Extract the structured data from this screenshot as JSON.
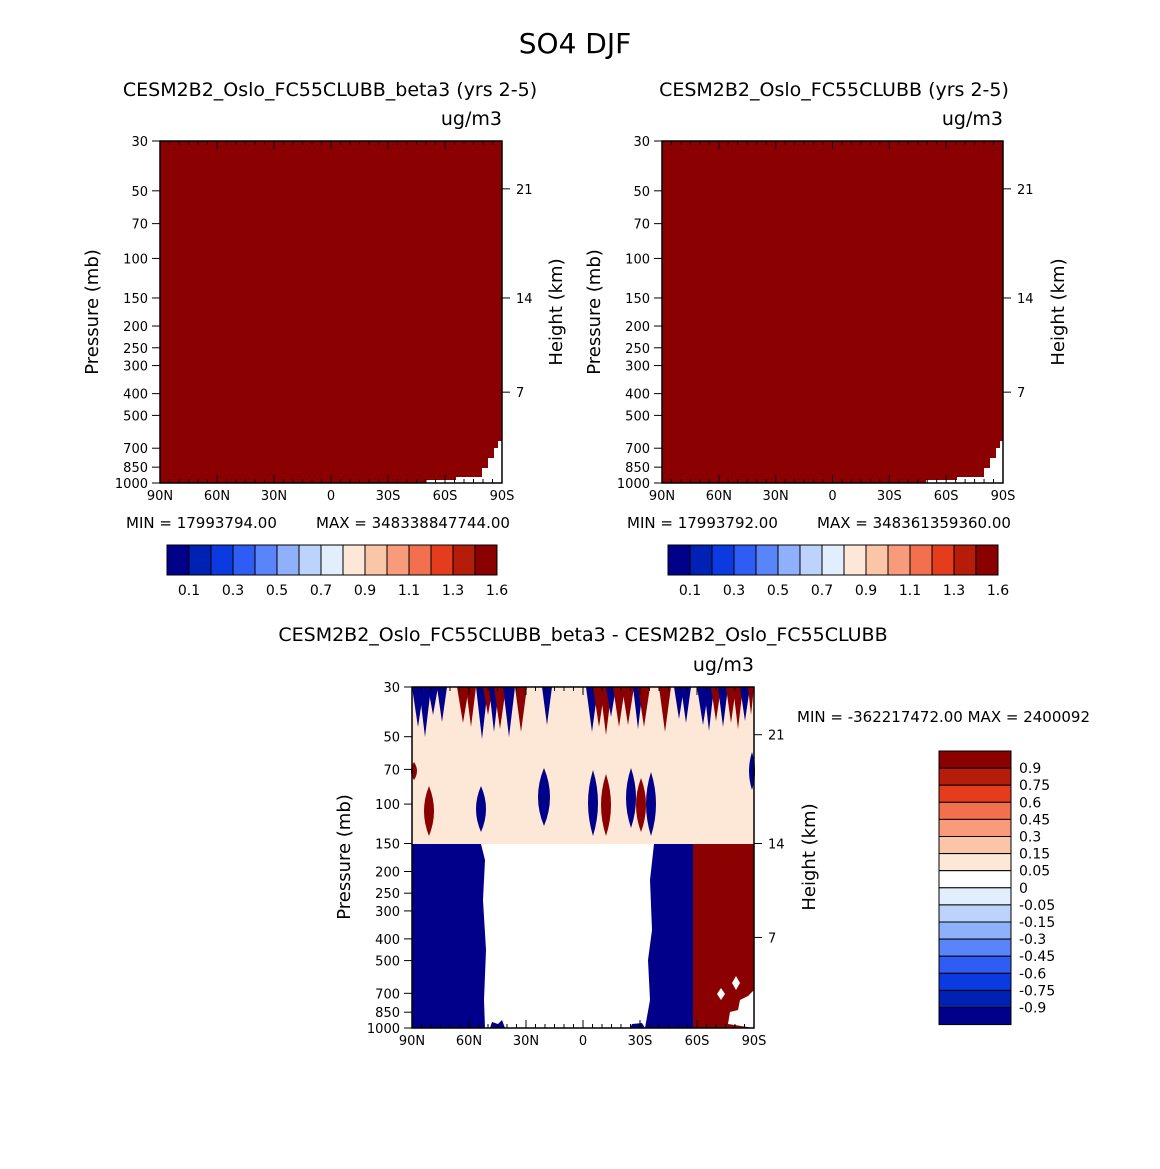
{
  "title": "SO4 DJF",
  "units_label": "ug/m3",
  "left_axis_label": "Pressure (mb)",
  "right_axis_label": "Height (km)",
  "chart_data": [
    {
      "type": "heatmap",
      "title": "CESM2B2_Oslo_FC55CLUBB_beta3 (yrs 2-5)",
      "units": "ug/m3",
      "xlabel": "",
      "ylabel": "Pressure (mb)",
      "ylabel_right": "Height (km)",
      "x_ticks": [
        "90N",
        "60N",
        "30N",
        "0",
        "30S",
        "60S",
        "90S"
      ],
      "y_ticks": [
        "30",
        "50",
        "70",
        "100",
        "150",
        "200",
        "250",
        "300",
        "400",
        "500",
        "700",
        "850",
        "1000"
      ],
      "y_ticks_right": [
        "21",
        "14",
        "7"
      ],
      "min_label": "MIN = 17993794.00",
      "max_label": "MAX = 348338847744.00",
      "fill": "#8b0000",
      "colorbar_labels": [
        "0.1",
        "0.3",
        "0.5",
        "0.7",
        "0.9",
        "1.1",
        "1.3",
        "1.6"
      ],
      "colorbar_colors": [
        "#00008b",
        "#0022b4",
        "#0a3ae0",
        "#2e5cf5",
        "#5a85fa",
        "#8fb0fb",
        "#bcd3fb",
        "#e2eefc",
        "#fde7d6",
        "#fbc5a8",
        "#f79b7a",
        "#f2704e",
        "#e63c1e",
        "#b51c0a",
        "#8b0000"
      ]
    },
    {
      "type": "heatmap",
      "title": "CESM2B2_Oslo_FC55CLUBB (yrs 2-5)",
      "units": "ug/m3",
      "xlabel": "",
      "ylabel": "Pressure (mb)",
      "ylabel_right": "Height (km)",
      "x_ticks": [
        "90N",
        "60N",
        "30N",
        "0",
        "30S",
        "60S",
        "90S"
      ],
      "y_ticks": [
        "30",
        "50",
        "70",
        "100",
        "150",
        "200",
        "250",
        "300",
        "400",
        "500",
        "700",
        "850",
        "1000"
      ],
      "y_ticks_right": [
        "21",
        "14",
        "7"
      ],
      "min_label": "MIN = 17993792.00",
      "max_label": "MAX = 348361359360.00",
      "fill": "#8b0000",
      "colorbar_labels": [
        "0.1",
        "0.3",
        "0.5",
        "0.7",
        "0.9",
        "1.1",
        "1.3",
        "1.6"
      ],
      "colorbar_colors": [
        "#00008b",
        "#0022b4",
        "#0a3ae0",
        "#2e5cf5",
        "#5a85fa",
        "#8fb0fb",
        "#bcd3fb",
        "#e2eefc",
        "#fde7d6",
        "#fbc5a8",
        "#f79b7a",
        "#f2704e",
        "#e63c1e",
        "#b51c0a",
        "#8b0000"
      ]
    },
    {
      "type": "heatmap",
      "title": "CESM2B2_Oslo_FC55CLUBB_beta3 - CESM2B2_Oslo_FC55CLUBB",
      "units": "ug/m3",
      "xlabel": "",
      "ylabel": "Pressure (mb)",
      "ylabel_right": "Height (km)",
      "x_ticks": [
        "90N",
        "60N",
        "30N",
        "0",
        "30S",
        "60S",
        "90S"
      ],
      "y_ticks": [
        "30",
        "50",
        "70",
        "100",
        "150",
        "200",
        "250",
        "300",
        "400",
        "500",
        "700",
        "850",
        "1000"
      ],
      "y_ticks_right": [
        "21",
        "14",
        "7"
      ],
      "stats_label": "MIN = -362217472.00   MAX = 2400092",
      "regions": {
        "upper_band": "0.05",
        "lower_north": "-0.9",
        "lower_mid": "0",
        "lower_south_blue": "-0.9",
        "lower_south_red": "0.9"
      },
      "colorbar_labels": [
        "0.9",
        "0.75",
        "0.6",
        "0.45",
        "0.3",
        "0.15",
        "0.05",
        "0",
        "-0.05",
        "-0.15",
        "-0.3",
        "-0.45",
        "-0.6",
        "-0.75",
        "-0.9"
      ],
      "colorbar_colors": [
        "#8b0000",
        "#b51c0a",
        "#e63c1e",
        "#f2704e",
        "#f79b7a",
        "#fbc5a8",
        "#fde7d6",
        "#ffffff",
        "#e2eefc",
        "#bcd3fb",
        "#8fb0fb",
        "#5a85fa",
        "#2e5cf5",
        "#0a3ae0",
        "#0022b4",
        "#00008b"
      ]
    }
  ]
}
